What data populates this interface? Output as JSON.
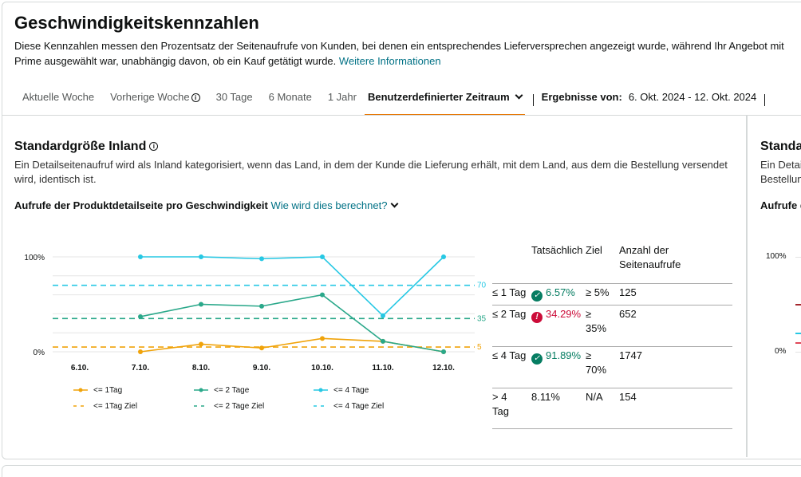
{
  "header": {
    "title": "Geschwindigkeitskennzahlen",
    "description": "Diese Kennzahlen messen den Prozentsatz der Seitenaufrufe von Kunden, bei denen ein entsprechendes Lieferversprechen angezeigt wurde, während Ihr Angebot mit Prime ausgewählt war, unabhängig davon, ob ein Kauf getätigt wurde.",
    "more_link": "Weitere Informationen"
  },
  "tabs": [
    {
      "label": "Aktuelle Woche"
    },
    {
      "label": "Vorherige Woche"
    },
    {
      "label": "30 Tage"
    },
    {
      "label": "6 Monate"
    },
    {
      "label": "1 Jahr"
    },
    {
      "label": "Benutzerdefinierter Zeitraum"
    }
  ],
  "results": {
    "label": "Ergebnisse von:",
    "range": "6. Okt. 2024 - 12. Okt. 2024"
  },
  "card": {
    "title": "Standardgröße Inland",
    "description": "Ein Detailseitenaufruf wird als Inland kategorisiert, wenn das Land, in dem der Kunde die Lieferung erhält, mit dem Land, aus dem die Bestellung versendet wird, identisch ist.",
    "subheading": "Aufrufe der Produktdetailseite pro Geschwindigkeit",
    "calc_link": "Wie wird dies berechnet?"
  },
  "second_card": {
    "title": "Standa",
    "desc_line1": "Ein Detai",
    "desc_line2": "Bestellun",
    "subheading": "Aufrufe d",
    "y_top": "100%",
    "y_bottom": "0%"
  },
  "chart_data": {
    "type": "line",
    "categories": [
      "6.10.",
      "7.10.",
      "8.10.",
      "9.10.",
      "10.10.",
      "11.10.",
      "12.10."
    ],
    "y_ticks": [
      "100%",
      "0%"
    ],
    "ylim": [
      0,
      100
    ],
    "series": [
      {
        "name": "<= 1Tag",
        "color": "#f0a30a",
        "values": [
          null,
          0,
          8,
          4,
          14,
          11,
          0
        ]
      },
      {
        "name": "<= 2 Tage",
        "color": "#2aa88a",
        "values": [
          null,
          37,
          50,
          48,
          60,
          11,
          0
        ]
      },
      {
        "name": "<= 4 Tage",
        "color": "#27c8e4",
        "values": [
          null,
          100,
          100,
          98,
          100,
          38,
          100
        ]
      }
    ],
    "targets": [
      {
        "name": "<= 1Tag Ziel",
        "color": "#f0a30a",
        "value": 5,
        "label": "5"
      },
      {
        "name": "<= 2 Tage Ziel",
        "color": "#2aa88a",
        "value": 35,
        "label": "35"
      },
      {
        "name": "<= 4 Tage Ziel",
        "color": "#27c8e4",
        "value": 70,
        "label": "70"
      }
    ],
    "grid": true,
    "legend": "bottom"
  },
  "table": {
    "headers": {
      "actual": "Tatsächlich",
      "target": "Ziel",
      "views": "Anzahl der Seitenaufrufe"
    },
    "rows": [
      {
        "label": "≤ 1 Tag",
        "actual": "6.57%",
        "status": "ok",
        "target": "≥ 5%",
        "views": "125"
      },
      {
        "label": "≤ 2 Tag",
        "actual": "34.29%",
        "status": "bad",
        "target": "≥ 35%",
        "views": "652"
      },
      {
        "label": "≤ 4 Tag",
        "actual": "91.89%",
        "status": "ok",
        "target": "≥ 70%",
        "views": "1747"
      },
      {
        "label": "> 4 Tag",
        "actual": "8.11%",
        "status": "none",
        "target": "N/A",
        "views": "154"
      }
    ]
  }
}
